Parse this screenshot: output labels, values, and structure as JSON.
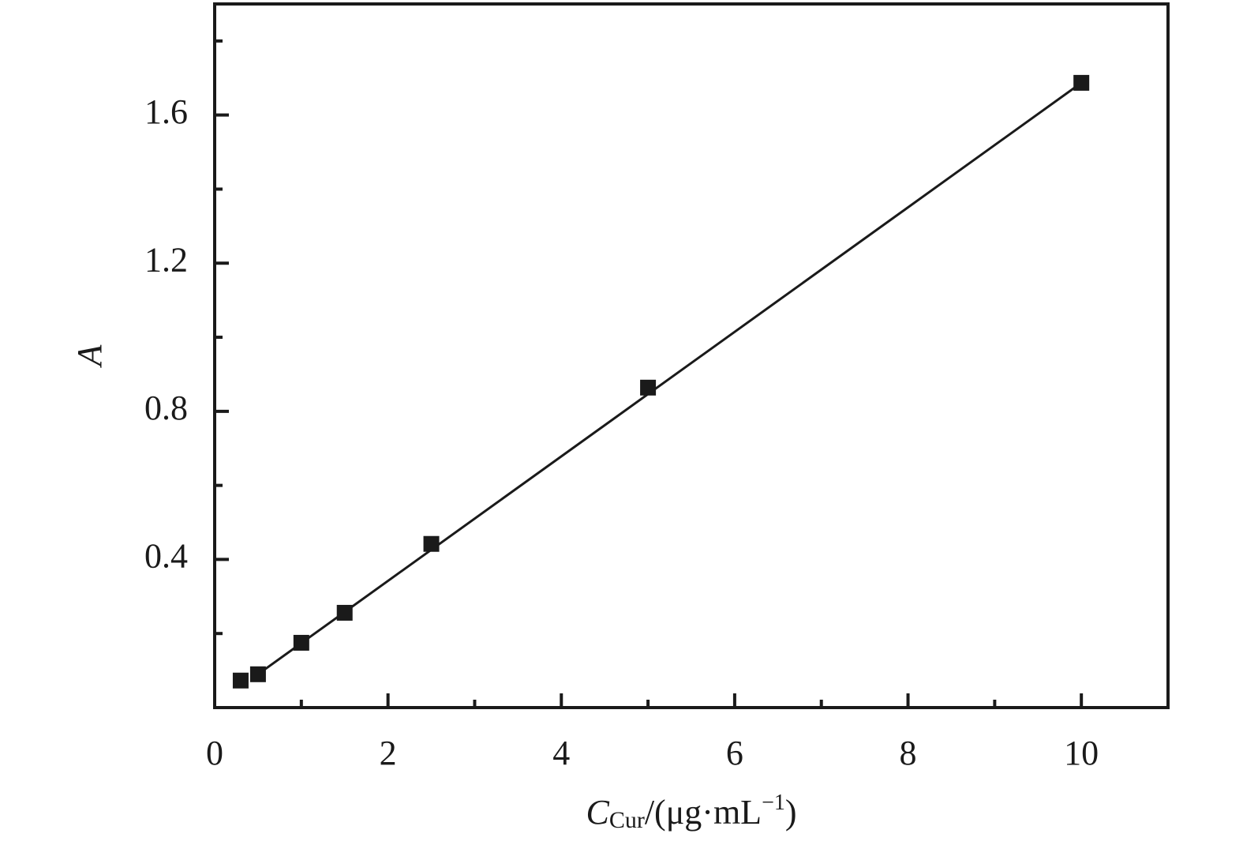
{
  "chart_data": {
    "type": "scatter",
    "x_label": {
      "symbol": "C",
      "subscript": "Cur",
      "unit": "/(μg·mL",
      "superscript": "−1",
      "close": ")"
    },
    "y_label": "A",
    "series": [
      {
        "x": [
          0.3,
          0.5,
          1,
          1.5,
          2.5,
          5,
          10
        ],
        "values": [
          0.073,
          0.09,
          0.175,
          0.256,
          0.442,
          0.864,
          1.687
        ],
        "color": "#1a1a1a"
      }
    ],
    "fit_line": {
      "x": [
        0.5,
        10
      ],
      "values": [
        0.09,
        1.687
      ],
      "color": "#1a1a1a"
    },
    "xlim": [
      0,
      11
    ],
    "ylim": [
      0,
      1.9
    ],
    "xticks": [
      0,
      2,
      4,
      6,
      8,
      10
    ],
    "x_minor_ticks": [
      1,
      3,
      5,
      7,
      9
    ],
    "yticks": [
      0.4,
      0.8,
      1.2,
      1.6
    ],
    "y_minor_ticks": [
      0.2,
      0.6,
      1.0,
      1.4,
      1.8
    ]
  }
}
